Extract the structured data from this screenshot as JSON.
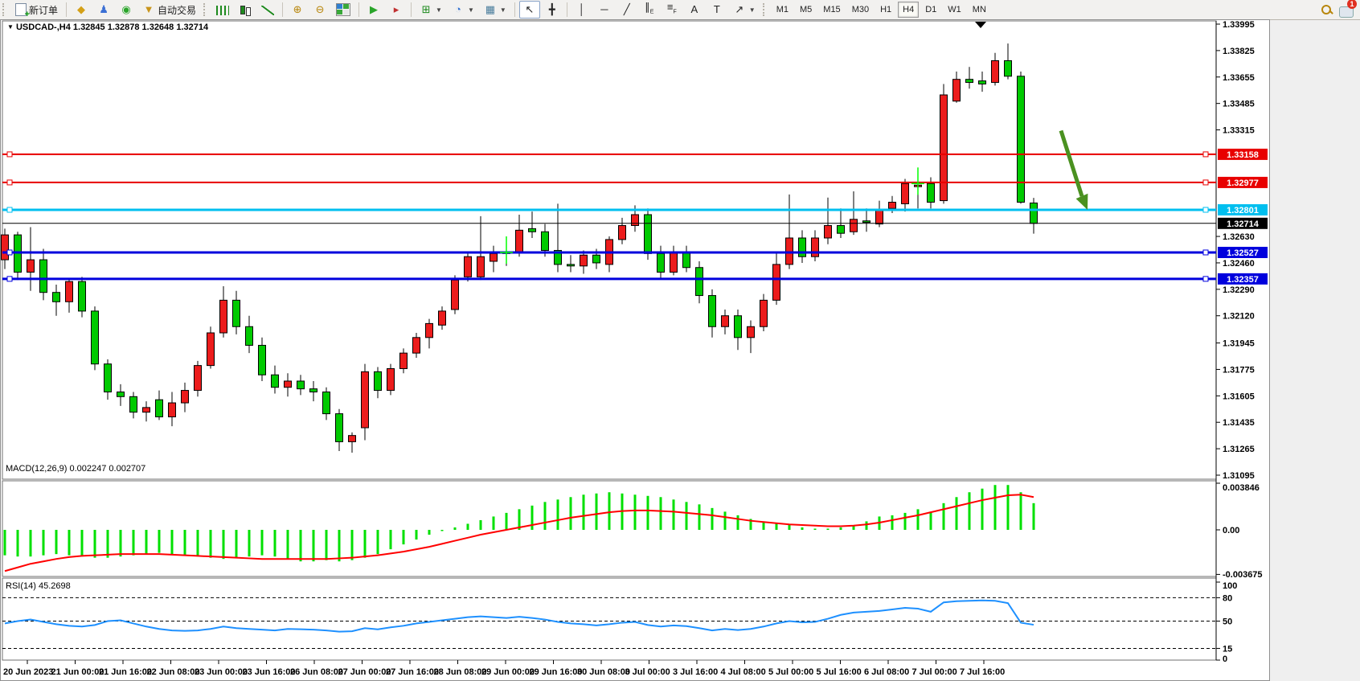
{
  "toolbar": {
    "new_order_label": "新订单",
    "auto_trading_label": "自动交易",
    "icon_groups": {
      "standard": [
        {
          "name": "market-watch-button",
          "glyph": "◆",
          "color": "#d4a017"
        },
        {
          "name": "navigator-button",
          "glyph": "♟",
          "color": "#3b6fd4"
        },
        {
          "name": "terminal-button",
          "glyph": "◉",
          "color": "#2aa52a"
        }
      ],
      "chart_types": [
        {
          "name": "bar-chart-button",
          "icon": "ic-bars"
        },
        {
          "name": "candlestick-chart-button",
          "icon": "ic-candle"
        },
        {
          "name": "line-chart-button",
          "icon": "ic-line"
        }
      ],
      "zoom": [
        {
          "name": "zoom-in-button",
          "glyph": "⊕",
          "color": "#b8860b"
        },
        {
          "name": "zoom-out-button",
          "glyph": "⊖",
          "color": "#b8860b"
        },
        {
          "name": "tile-windows-button",
          "icon": "ic-tile"
        }
      ],
      "scroll": [
        {
          "name": "auto-scroll-button",
          "glyph": "▶",
          "color": "#2aa52a"
        },
        {
          "name": "chart-shift-button",
          "glyph": "▸",
          "color": "#c03030"
        }
      ],
      "dropdowns": [
        {
          "name": "indicators-button",
          "glyph": "⊞",
          "color": "#1d8a1d",
          "dropdown": true
        },
        {
          "name": "periods-button",
          "glyph": "◔",
          "color": "#2f6fd0",
          "dropdown": true
        },
        {
          "name": "templates-button",
          "glyph": "▦",
          "color": "#4a7d9c",
          "dropdown": true
        }
      ],
      "cursor_tools": [
        {
          "name": "cursor-button",
          "glyph": "↖",
          "color": "#222",
          "active": true
        },
        {
          "name": "crosshair-button",
          "glyph": "╋",
          "color": "#222"
        }
      ],
      "draw_tools": [
        {
          "name": "vertical-line-button",
          "glyph": "│",
          "color": "#222"
        },
        {
          "name": "horizontal-line-button",
          "glyph": "─",
          "color": "#222"
        },
        {
          "name": "trendline-button",
          "glyph": "╱",
          "color": "#222"
        },
        {
          "name": "equidistant-channel-button",
          "glyph": "∥",
          "sub": "E",
          "color": "#222"
        },
        {
          "name": "fibonacci-button",
          "glyph": "≡",
          "sub": "F",
          "color": "#222"
        },
        {
          "name": "text-button",
          "glyph": "A",
          "color": "#222"
        },
        {
          "name": "text-label-button",
          "glyph": "T",
          "color": "#222"
        },
        {
          "name": "arrows-objects-button",
          "glyph": "↗",
          "color": "#222",
          "dropdown": true
        }
      ]
    },
    "timeframes": [
      "M1",
      "M5",
      "M15",
      "M30",
      "H1",
      "H4",
      "D1",
      "W1",
      "MN"
    ],
    "active_timeframe": "H4",
    "notification_count": "1"
  },
  "chart": {
    "title_symbol": "USDCAD-,H4",
    "title_ohlc": "1.32845 1.32878 1.32648 1.32714",
    "macd_label": "MACD(12,26,9) 0.002247 0.002707",
    "rsi_label": "RSI(14) 45.2698",
    "colors": {
      "bull_candle": "#ec1c1c",
      "bear_candle": "#00ca00",
      "candle_outline": "#000000",
      "resistance_line": "#e80000",
      "support_line": "#0000dd",
      "breakout_line": "#00bfef",
      "current_price_line": "#000000",
      "macd_histogram": "#00e000",
      "macd_signal": "#ff0000",
      "rsi_line": "#1e90ff",
      "arrow_annotation": "#4a9120",
      "trade_marker": "#00ff00"
    }
  },
  "chart_data": [
    {
      "type": "candlestick",
      "title": "USDCAD-,H4",
      "open": 1.32845,
      "high": 1.32878,
      "low": 1.32648,
      "close": 1.32714,
      "ylim": [
        1.31095,
        1.33995
      ],
      "y_ticks": [
        1.33995,
        1.33825,
        1.33655,
        1.33485,
        1.33315,
        1.3263,
        1.3246,
        1.3229,
        1.3212,
        1.31945,
        1.31775,
        1.31605,
        1.31435,
        1.31265,
        1.31095
      ],
      "hlines": [
        {
          "price": 1.33158,
          "label": "1.33158",
          "role": "resistance",
          "color": "#e80000",
          "width": 2
        },
        {
          "price": 1.32977,
          "label": "1.32977",
          "role": "resistance",
          "color": "#e80000",
          "width": 2
        },
        {
          "price": 1.32801,
          "label": "1.32801",
          "role": "breakout",
          "color": "#00bfef",
          "width": 3
        },
        {
          "price": 1.32714,
          "label": "1.32714",
          "role": "current-price",
          "color": "#000000",
          "width": 1
        },
        {
          "price": 1.32527,
          "label": "1.32527",
          "role": "support",
          "color": "#0000dd",
          "width": 3
        },
        {
          "price": 1.32357,
          "label": "1.32357",
          "role": "support",
          "color": "#0000dd",
          "width": 3
        }
      ],
      "candles": [
        [
          1.3248,
          1.3268,
          1.3242,
          1.3264
        ],
        [
          1.3264,
          1.3266,
          1.3235,
          1.324
        ],
        [
          1.324,
          1.3269,
          1.3228,
          1.3248
        ],
        [
          1.3248,
          1.3255,
          1.3222,
          1.3227
        ],
        [
          1.3227,
          1.3232,
          1.3212,
          1.3221
        ],
        [
          1.3221,
          1.3236,
          1.3214,
          1.3234
        ],
        [
          1.3234,
          1.3237,
          1.3211,
          1.3215
        ],
        [
          1.3215,
          1.3218,
          1.3177,
          1.3181
        ],
        [
          1.3181,
          1.3184,
          1.3158,
          1.3163
        ],
        [
          1.3163,
          1.3168,
          1.3154,
          1.316
        ],
        [
          1.316,
          1.3163,
          1.3146,
          1.315
        ],
        [
          1.315,
          1.3157,
          1.3144,
          1.3153
        ],
        [
          1.3158,
          1.3164,
          1.3145,
          1.3147
        ],
        [
          1.3147,
          1.3163,
          1.3141,
          1.3156
        ],
        [
          1.3156,
          1.3169,
          1.315,
          1.3164
        ],
        [
          1.3164,
          1.3183,
          1.316,
          1.318
        ],
        [
          1.318,
          1.3205,
          1.3178,
          1.3201
        ],
        [
          1.3201,
          1.3231,
          1.3198,
          1.3222
        ],
        [
          1.3222,
          1.3228,
          1.32,
          1.3205
        ],
        [
          1.3205,
          1.3212,
          1.3188,
          1.3193
        ],
        [
          1.3193,
          1.3198,
          1.317,
          1.3174
        ],
        [
          1.3174,
          1.318,
          1.3162,
          1.3166
        ],
        [
          1.3166,
          1.3175,
          1.316,
          1.317
        ],
        [
          1.317,
          1.3174,
          1.3161,
          1.3165
        ],
        [
          1.3165,
          1.317,
          1.3157,
          1.3163
        ],
        [
          1.3163,
          1.3166,
          1.3145,
          1.3149
        ],
        [
          1.3149,
          1.3152,
          1.3125,
          1.3131
        ],
        [
          1.3131,
          1.3137,
          1.3124,
          1.3135
        ],
        [
          1.314,
          1.3181,
          1.3132,
          1.3176
        ],
        [
          1.3176,
          1.3179,
          1.3159,
          1.3164
        ],
        [
          1.3164,
          1.3181,
          1.3161,
          1.3178
        ],
        [
          1.3178,
          1.3191,
          1.3175,
          1.3188
        ],
        [
          1.3188,
          1.3201,
          1.3185,
          1.3198
        ],
        [
          1.3198,
          1.321,
          1.3191,
          1.3207
        ],
        [
          1.3206,
          1.3218,
          1.3203,
          1.3215
        ],
        [
          1.3216,
          1.3238,
          1.3213,
          1.3235
        ],
        [
          1.3237,
          1.3253,
          1.3234,
          1.325
        ],
        [
          1.3237,
          1.3276,
          1.3235,
          1.325
        ],
        [
          1.3247,
          1.3257,
          1.324,
          1.3252
        ],
        [
          1.3252,
          1.3259,
          1.3244,
          1.3253
        ],
        [
          1.3253,
          1.3277,
          1.325,
          1.3267
        ],
        [
          1.3268,
          1.3279,
          1.3262,
          1.3266
        ],
        [
          1.3266,
          1.3271,
          1.325,
          1.3254
        ],
        [
          1.3254,
          1.3284,
          1.324,
          1.3245
        ],
        [
          1.3245,
          1.3251,
          1.324,
          1.3244
        ],
        [
          1.3244,
          1.3254,
          1.3239,
          1.3251
        ],
        [
          1.3251,
          1.3255,
          1.3242,
          1.3246
        ],
        [
          1.3245,
          1.3263,
          1.324,
          1.3261
        ],
        [
          1.3261,
          1.3275,
          1.3258,
          1.327
        ],
        [
          1.327,
          1.3283,
          1.3266,
          1.3277
        ],
        [
          1.3277,
          1.3281,
          1.3248,
          1.3252
        ],
        [
          1.3252,
          1.3257,
          1.3236,
          1.324
        ],
        [
          1.324,
          1.3257,
          1.3238,
          1.3253
        ],
        [
          1.3253,
          1.3257,
          1.324,
          1.3243
        ],
        [
          1.3243,
          1.3247,
          1.322,
          1.3225
        ],
        [
          1.3225,
          1.3229,
          1.3198,
          1.3205
        ],
        [
          1.3205,
          1.3216,
          1.32,
          1.3212
        ],
        [
          1.3212,
          1.3216,
          1.319,
          1.3198
        ],
        [
          1.3198,
          1.3209,
          1.3188,
          1.3205
        ],
        [
          1.3205,
          1.3226,
          1.3202,
          1.3222
        ],
        [
          1.3222,
          1.3253,
          1.3219,
          1.3245
        ],
        [
          1.3245,
          1.329,
          1.3242,
          1.3262
        ],
        [
          1.3262,
          1.3267,
          1.3246,
          1.325
        ],
        [
          1.325,
          1.3267,
          1.3247,
          1.3262
        ],
        [
          1.3262,
          1.3288,
          1.3258,
          1.327
        ],
        [
          1.327,
          1.3281,
          1.3262,
          1.3265
        ],
        [
          1.3266,
          1.3292,
          1.3264,
          1.3274
        ],
        [
          1.3273,
          1.3281,
          1.3266,
          1.3272
        ],
        [
          1.3271,
          1.3286,
          1.3269,
          1.328
        ],
        [
          1.3281,
          1.3289,
          1.3278,
          1.3285
        ],
        [
          1.3284,
          1.33,
          1.3279,
          1.3297
        ],
        [
          1.3295,
          1.3305,
          1.3281,
          1.3296
        ],
        [
          1.3297,
          1.3301,
          1.3281,
          1.3285
        ],
        [
          1.3286,
          1.3361,
          1.3284,
          1.3354
        ],
        [
          1.335,
          1.3369,
          1.3349,
          1.3364
        ],
        [
          1.3364,
          1.3372,
          1.3358,
          1.3362
        ],
        [
          1.3363,
          1.3369,
          1.3356,
          1.3361
        ],
        [
          1.3362,
          1.3381,
          1.336,
          1.3376
        ],
        [
          1.3376,
          1.3387,
          1.3364,
          1.3366
        ],
        [
          1.3366,
          1.3369,
          1.3284,
          1.3285
        ],
        [
          1.32845,
          1.32878,
          1.32648,
          1.32714
        ]
      ],
      "trade_markers": [
        {
          "candle_index": 39,
          "price": 1.32527
        },
        {
          "candle_index": 71,
          "price": 1.3297
        }
      ],
      "arrow_annotation": {
        "direction": "down-right",
        "from_price": 1.3331,
        "to_price": 1.3292
      }
    },
    {
      "type": "bar",
      "name": "MACD",
      "params": "12,26,9",
      "current_values": [
        0.002247,
        0.002707
      ],
      "y_ticks": [
        {
          "v": 0.003846,
          "label": "0.003846"
        },
        {
          "v": 0,
          "label": "0.00"
        },
        {
          "v": -0.003675,
          "label": "-0.003675"
        }
      ],
      "hist_x1e4": [
        -21,
        -22,
        -22,
        -21,
        -20,
        -21,
        -22,
        -23,
        -23,
        -22,
        -21,
        -20,
        -19,
        -20,
        -21,
        -22,
        -23,
        -24,
        -23,
        -22,
        -21,
        -22,
        -24,
        -26,
        -26,
        -25,
        -26,
        -25,
        -23,
        -20,
        -16,
        -12,
        -8,
        -4,
        -1,
        2,
        5,
        8,
        11,
        14,
        17,
        20,
        23,
        25,
        27,
        29,
        30,
        31,
        30,
        29,
        28,
        27,
        25,
        23,
        21,
        18,
        15,
        12,
        9,
        7,
        5,
        4,
        2,
        1,
        1,
        2,
        3,
        7,
        11,
        12,
        14,
        17,
        15,
        22,
        27,
        31,
        34,
        37,
        37,
        31,
        22
      ],
      "signal_x1e4": [
        -34,
        -31,
        -28,
        -26,
        -24,
        -22.5,
        -21.5,
        -21,
        -20.5,
        -20,
        -20,
        -20,
        -20,
        -20.5,
        -21,
        -21.5,
        -22,
        -22.5,
        -23,
        -23.5,
        -24,
        -24,
        -24,
        -24,
        -24,
        -24,
        -23.5,
        -23,
        -22,
        -21,
        -19.5,
        -18,
        -16,
        -14,
        -11.5,
        -9,
        -6.5,
        -4,
        -2,
        0,
        2,
        4,
        6,
        8,
        10,
        11.5,
        13,
        14.5,
        15.5,
        16,
        16,
        15.5,
        15,
        14,
        13,
        12,
        10.5,
        9,
        7.5,
        6.5,
        5.5,
        4.5,
        4,
        3.5,
        3,
        3,
        3.5,
        4.5,
        6,
        8,
        10,
        12,
        14.5,
        17,
        19.5,
        22,
        24.5,
        26.5,
        28.5,
        29,
        27
      ]
    },
    {
      "type": "line",
      "name": "RSI",
      "params": "14",
      "current_value": 45.2698,
      "levels": [
        80,
        50,
        15
      ],
      "y_ticks": [
        {
          "v": 100,
          "label": "100"
        },
        {
          "v": 80,
          "label": "80"
        },
        {
          "v": 50,
          "label": "50"
        },
        {
          "v": 15,
          "label": "15"
        },
        {
          "v": 0,
          "label": "0"
        }
      ],
      "values": [
        47,
        50,
        52,
        49,
        46,
        44,
        43,
        45,
        50,
        51,
        47,
        43,
        40,
        38,
        37.5,
        38,
        40,
        43,
        41,
        40,
        39,
        38,
        40,
        39.5,
        39,
        38,
        36.5,
        37,
        41,
        39.5,
        42,
        44,
        47,
        49,
        51,
        53,
        55,
        56,
        55,
        54,
        55.5,
        54,
        52,
        49,
        47,
        46,
        44.5,
        46,
        48,
        49,
        45,
        43,
        44.5,
        43.5,
        41,
        38,
        40,
        38.5,
        40,
        43,
        47,
        50,
        48.5,
        49,
        53,
        58,
        61,
        62,
        63,
        65,
        67,
        66,
        62,
        74,
        75.5,
        76,
        76.5,
        76,
        73,
        48,
        45.3
      ]
    }
  ],
  "x_labels": [
    "20 Jun 2023",
    "21 Jun 00:00",
    "21 Jun 16:00",
    "22 Jun 08:00",
    "23 Jun 00:00",
    "23 Jun 16:00",
    "26 Jun 08:00",
    "27 Jun 00:00",
    "27 Jun 16:00",
    "28 Jun 08:00",
    "29 Jun 00:00",
    "29 Jun 16:00",
    "30 Jun 08:00",
    "3 Jul 00:00",
    "3 Jul 16:00",
    "4 Jul 08:00",
    "5 Jul 00:00",
    "5 Jul 16:00",
    "6 Jul 08:00",
    "7 Jul 00:00",
    "7 Jul 16:00"
  ]
}
